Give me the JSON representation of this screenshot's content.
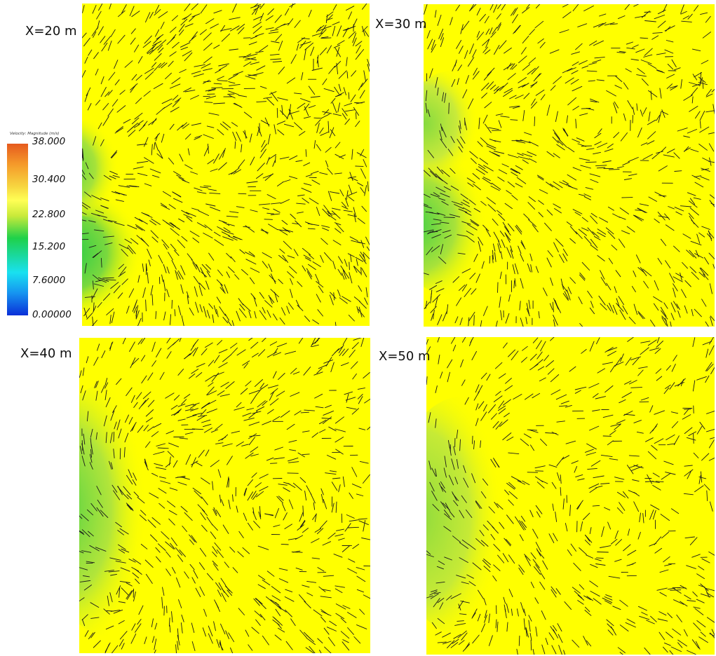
{
  "panels": [
    {
      "id": "tl",
      "label": "X=20 m"
    },
    {
      "id": "tr",
      "label": "X=30 m"
    },
    {
      "id": "bl",
      "label": "X=40 m"
    },
    {
      "id": "br",
      "label": "X=50 m"
    }
  ],
  "colorbar": {
    "title": "Velocity: Magnitude (m/s)",
    "ticks": [
      "38.000",
      "30.400",
      "22.800",
      "15.200",
      "7.6000",
      "0.00000"
    ]
  },
  "colors": {
    "field": "#ffff00",
    "low_speed": "#2fd14a",
    "vector": "#1a1a1a"
  }
}
